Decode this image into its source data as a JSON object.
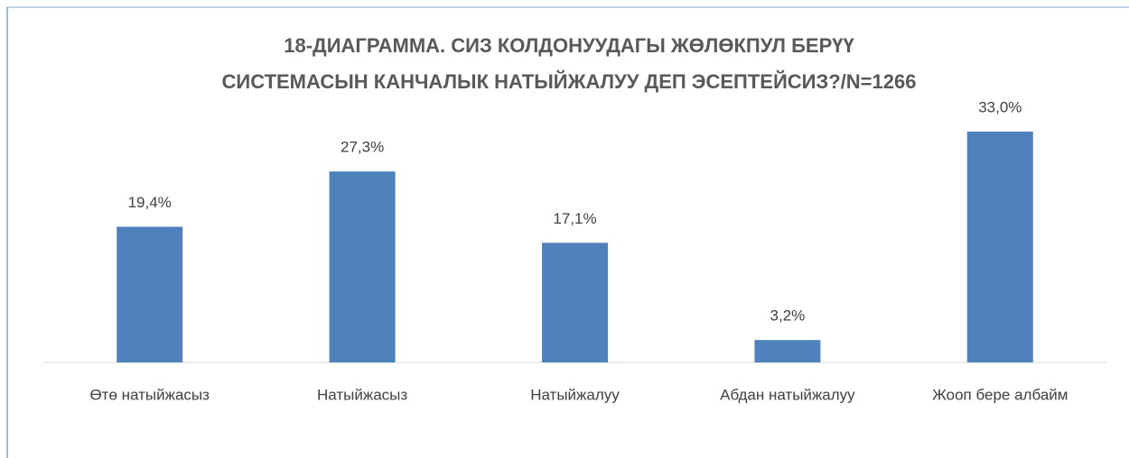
{
  "chart_data": {
    "type": "bar",
    "title": [
      "18-ДИАГРАММА. СИЗ КОЛДОНУУДАГЫ ЖӨЛӨКПУЛ БЕРҮҮ",
      "СИСТЕМАСЫН КАНЧАЛЫК НАТЫЙЖАЛУУ ДЕП ЭСЕПТЕЙСИЗ?/N=1266"
    ],
    "categories": [
      "Өтө натыйжасыз",
      "Натыйжасыз",
      "Натыйжалуу",
      "Абдан натыйжалуу",
      "Жооп бере албайм"
    ],
    "values": [
      19.4,
      27.3,
      17.1,
      3.2,
      33.0
    ],
    "value_labels": [
      "19,4%",
      "27,3%",
      "17,1%",
      "3,2%",
      "33,0%"
    ],
    "color": "#4f81bd"
  }
}
